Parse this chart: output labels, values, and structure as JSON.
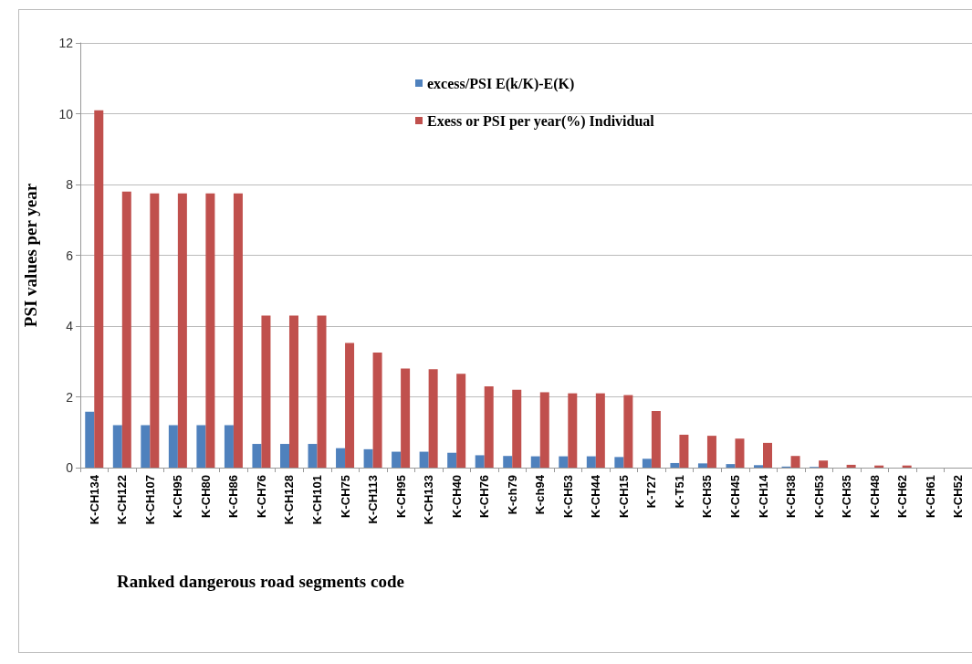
{
  "chart_data": {
    "type": "bar",
    "xlabel": "Ranked dangerous road segments code",
    "ylabel": "PSI values per year",
    "categories": [
      "K-CH134",
      "K-CH122",
      "K-CH107",
      "K-CH95",
      "K-CH80",
      "K-CH86",
      "K-CH76",
      "K-CH128",
      "K-CH101",
      "K-CH75",
      "K-CH113",
      "K-CH95",
      "K-CH133",
      "K-CH40",
      "K-CH76",
      "K-ch79",
      "K-ch94",
      "K-CH53",
      "K-CH44",
      "K-CH15",
      "K-T27",
      "K-T51",
      "K-CH35",
      "K-CH45",
      "K-CH14",
      "K-CH38",
      "K-CH53",
      "K-CH35",
      "K-CH48",
      "K-CH62",
      "K-CH61",
      "K-CH52"
    ],
    "series": [
      {
        "name": "excess/PSI E(k/K)-E(K)",
        "color": "#4f81bd",
        "values": [
          1.58,
          1.2,
          1.2,
          1.2,
          1.2,
          1.2,
          0.67,
          0.67,
          0.67,
          0.55,
          0.52,
          0.45,
          0.45,
          0.42,
          0.35,
          0.33,
          0.32,
          0.32,
          0.32,
          0.3,
          0.25,
          0.13,
          0.12,
          0.1,
          0.07,
          0.03,
          0.02,
          0,
          0,
          0,
          0,
          0
        ]
      },
      {
        "name": "Exess or PSI per year(%) Individual",
        "color": "#c0504d",
        "values": [
          10.1,
          7.8,
          7.75,
          7.75,
          7.75,
          7.75,
          4.3,
          4.3,
          4.3,
          3.52,
          3.25,
          2.8,
          2.78,
          2.65,
          2.3,
          2.2,
          2.13,
          2.1,
          2.1,
          2.05,
          1.6,
          0.93,
          0.9,
          0.82,
          0.7,
          0.33,
          0.2,
          0.08,
          0.06,
          0.06,
          0,
          0
        ]
      }
    ],
    "ylim": [
      0,
      12
    ],
    "yticks": [
      0,
      2,
      4,
      6,
      8,
      10,
      12
    ],
    "grid": "y",
    "legend": "top right"
  }
}
